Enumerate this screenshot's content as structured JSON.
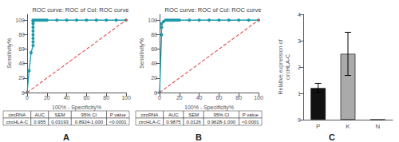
{
  "chart_data": [
    {
      "type": "line",
      "panel_label": "A",
      "title": "ROC curve: ROC of Col: ROC curve",
      "xlabel": "100% - Specificity%",
      "ylabel": "Sensitivity%",
      "xlim": [
        0,
        100
      ],
      "ylim": [
        0,
        108
      ],
      "xticks": [
        0,
        20,
        40,
        60,
        80,
        100
      ],
      "yticks": [
        0,
        20,
        40,
        60,
        80,
        100
      ],
      "grid": false,
      "series": [
        {
          "x": [
            0,
            2,
            4,
            6,
            6,
            6,
            6,
            6,
            6,
            6,
            6,
            6,
            8,
            10,
            12,
            14,
            16,
            18,
            20,
            30,
            40,
            50,
            60,
            70,
            80,
            90,
            100
          ],
          "values": [
            0,
            30,
            55,
            65,
            70,
            75,
            80,
            85,
            90,
            95,
            98,
            100,
            100,
            100,
            100,
            100,
            100,
            100,
            100,
            100,
            100,
            100,
            100,
            100,
            100,
            100,
            100
          ],
          "color": "#1a9aaa",
          "marker": "circle",
          "line_style": "solid"
        },
        {
          "x": [
            0,
            100
          ],
          "values": [
            0,
            100
          ],
          "color": "#e05050",
          "marker": "circle",
          "line_style": "dashed"
        }
      ],
      "table": {
        "headers": [
          "circRNA",
          "AUC",
          "SEM",
          "95% CI",
          "P value"
        ],
        "rows": [
          [
            "circHLA-C",
            "0.955",
            "0.03193",
            "0.8924-1.000",
            "<0.0001"
          ]
        ]
      }
    },
    {
      "type": "line",
      "panel_label": "B",
      "title": "ROC curve: ROC of Col: ROC curve",
      "xlabel": "100% - Specificity%",
      "ylabel": "Sensitivity%",
      "xlim": [
        0,
        100
      ],
      "ylim": [
        0,
        108
      ],
      "xticks": [
        0,
        20,
        40,
        60,
        80,
        100
      ],
      "yticks": [
        0,
        20,
        40,
        60,
        80,
        100
      ],
      "grid": false,
      "series": [
        {
          "x": [
            0,
            2,
            2,
            2,
            4,
            6,
            8,
            10,
            12,
            14,
            16,
            18,
            20,
            30,
            40,
            50,
            60,
            70,
            80,
            90,
            100
          ],
          "values": [
            0,
            80,
            90,
            95,
            98,
            100,
            100,
            100,
            100,
            100,
            100,
            100,
            100,
            100,
            100,
            100,
            100,
            100,
            100,
            100,
            100
          ],
          "color": "#1a9aaa",
          "marker": "circle",
          "line_style": "solid"
        },
        {
          "x": [
            0,
            100
          ],
          "values": [
            0,
            100
          ],
          "color": "#e05050",
          "marker": "circle",
          "line_style": "dashed"
        }
      ],
      "table": {
        "headers": [
          "circRNA",
          "AUC",
          "SEM",
          "95% CI",
          "P value"
        ],
        "rows": [
          [
            "circHLA-C",
            "0.9875",
            "0.0126",
            "0.9628-1.000",
            "<0.0001"
          ]
        ]
      }
    },
    {
      "type": "bar",
      "panel_label": "C",
      "categories": [
        "P",
        "K",
        "N"
      ],
      "values": [
        1.2,
        2.5,
        0.0
      ],
      "errors": [
        0.18,
        0.82,
        0.0
      ],
      "colors": [
        "#111111",
        "#aaaaaa",
        "#ffffff"
      ],
      "ylabel": "Relative expression of\ncircHLA-C",
      "ylim": [
        0,
        4
      ],
      "yticks": [
        0,
        1,
        2,
        3,
        4
      ],
      "grid": false
    }
  ]
}
